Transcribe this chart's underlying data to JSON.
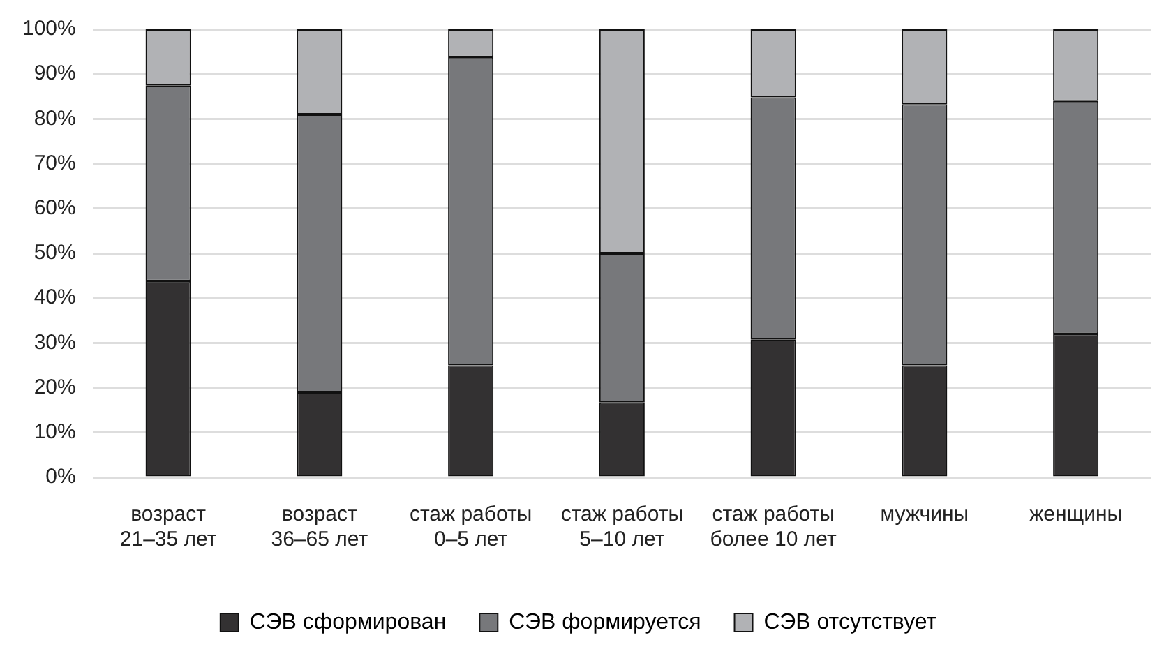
{
  "chart_data": {
    "type": "bar",
    "stacked": true,
    "categories": [
      "возраст\n21–35 лет",
      "возраст\n36–65 лет",
      "стаж работы\n0–5 лет",
      "стаж работы\n5–10 лет",
      "стаж работы\nболее 10 лет",
      "мужчины",
      "женщины"
    ],
    "series": [
      {
        "name": "СЭВ сформирован",
        "color": "#333132",
        "values": [
          43.8,
          19,
          25,
          16.7,
          30.8,
          25,
          32
        ]
      },
      {
        "name": "СЭВ формируется",
        "color": "#77787b",
        "values": [
          43.7,
          62,
          68.8,
          33.3,
          54,
          58.3,
          52
        ]
      },
      {
        "name": "СЭВ отсутствует",
        "color": "#b1b2b5",
        "values": [
          12.5,
          19,
          6.2,
          50,
          15.2,
          16.7,
          16
        ]
      }
    ],
    "ylim": [
      0,
      100
    ],
    "yticks": [
      {
        "value": 0,
        "label": "0%"
      },
      {
        "value": 10,
        "label": "10%"
      },
      {
        "value": 20,
        "label": "20%"
      },
      {
        "value": 30,
        "label": "30%"
      },
      {
        "value": 40,
        "label": "40%"
      },
      {
        "value": 50,
        "label": "50%"
      },
      {
        "value": 60,
        "label": "60%"
      },
      {
        "value": 70,
        "label": "70%"
      },
      {
        "value": 80,
        "label": "80%"
      },
      {
        "value": 90,
        "label": "90%"
      },
      {
        "value": 100,
        "label": "100%"
      }
    ],
    "grid": "y",
    "legend": "bottom"
  }
}
